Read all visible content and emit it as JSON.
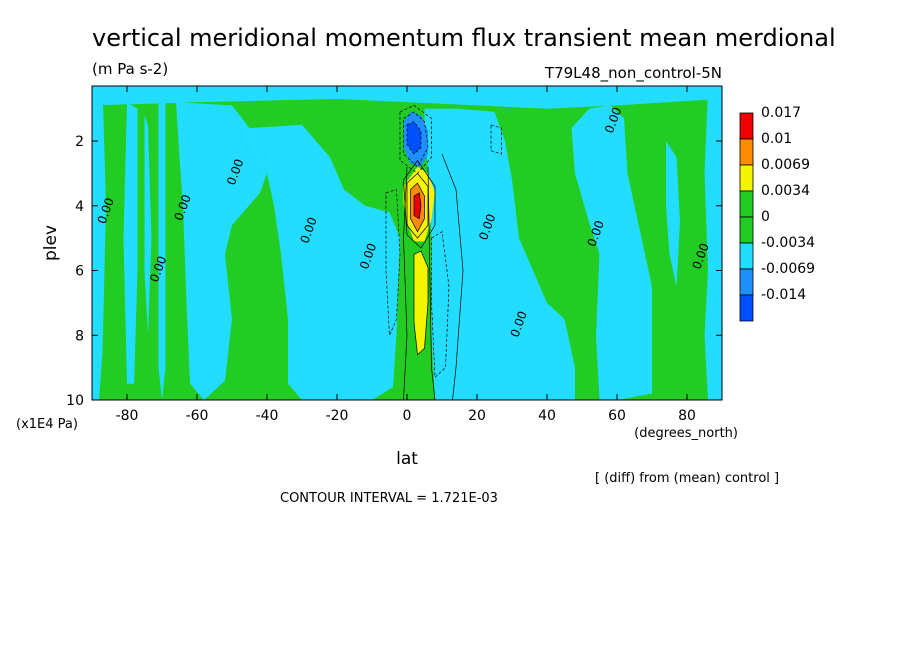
{
  "chart_data": {
    "type": "heatmap",
    "title": "vertical meridional momentum flux transient mean merdional",
    "units": "(m Pa s-2)",
    "run_label": "T79L48_non_control-5N",
    "xlabel": "lat",
    "xunits": "(degrees_north)",
    "ylabel": "plev",
    "yunits": "(x1E4 Pa)",
    "xlim": [
      -90,
      90
    ],
    "ylim": [
      10,
      0.3
    ],
    "x_ticks": [
      -80,
      -60,
      -40,
      -20,
      0,
      20,
      40,
      60,
      80
    ],
    "x_tick_labels": [
      "-80",
      "-60",
      "-40",
      "-20",
      "0",
      "20",
      "40",
      "60",
      "80"
    ],
    "y_ticks": [
      2,
      4,
      6,
      8,
      10
    ],
    "y_tick_labels": [
      "2",
      "4",
      "6",
      "8",
      "10"
    ],
    "contour_interval_text": "CONTOUR INTERVAL = 1.721E-03",
    "diff_note": "[ (diff) from (mean) control ]",
    "colorbar": {
      "levels": [
        "0.017",
        "0.01",
        "0.0069",
        "0.0034",
        "0",
        "-0.0034",
        "-0.0069",
        "-0.014"
      ],
      "colors": [
        "#ee0000",
        "#ff8c00",
        "#f5f500",
        "#22cc22",
        "#22cc22",
        "#22ddff",
        "#1e90ff",
        "#0050ff"
      ]
    },
    "features": [
      {
        "name": "positive-max",
        "lat": 2,
        "plev": 4.0,
        "value": 0.017
      },
      {
        "name": "negative-min",
        "lat": 2,
        "plev": 1.9,
        "value": -0.014
      },
      {
        "name": "positive-lower",
        "lat": 4,
        "plev": 6.6,
        "value": 0.0069
      }
    ],
    "contour_labels": [
      {
        "text": "0.00",
        "lat": 60,
        "plev": 1.4
      },
      {
        "text": "0.00",
        "lat": -70,
        "plev": 6.0
      },
      {
        "text": "0.00",
        "lat": -63,
        "plev": 4.1
      },
      {
        "text": "0.00",
        "lat": -48,
        "plev": 3.0
      },
      {
        "text": "0.00",
        "lat": -27,
        "plev": 4.8
      },
      {
        "text": "0.00",
        "lat": -10,
        "plev": 5.6
      },
      {
        "text": "0.00",
        "lat": 24,
        "plev": 4.7
      },
      {
        "text": "0.00",
        "lat": 33,
        "plev": 7.7
      },
      {
        "text": "0.00",
        "lat": 55,
        "plev": 4.9
      },
      {
        "text": "0.00",
        "lat": 85,
        "plev": 5.6
      },
      {
        "text": "0.00",
        "lat": -85,
        "plev": 4.2
      }
    ],
    "colors": {
      "green": "#22cc22",
      "cyan": "#22ddff",
      "blue": "#1e90ff",
      "dblue": "#0050ff",
      "yellow": "#f5f500",
      "orange": "#ff8c00",
      "red": "#ee0000"
    }
  }
}
